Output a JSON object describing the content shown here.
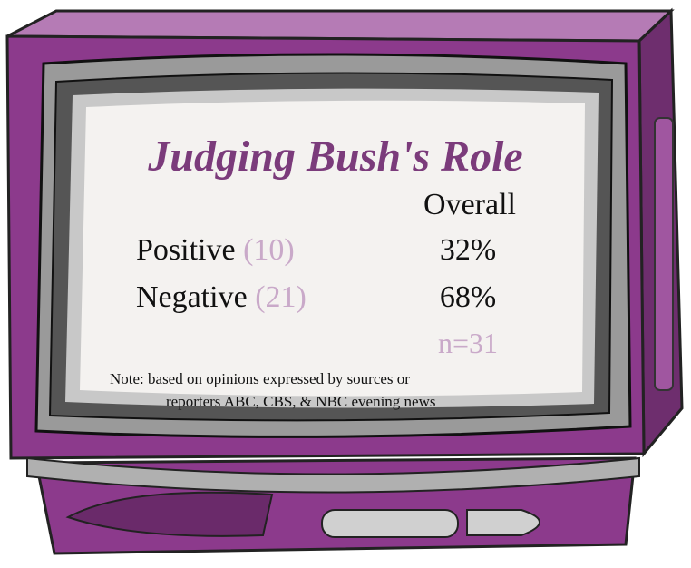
{
  "title": "Judging Bush's Role",
  "table": {
    "column_header": "Overall",
    "rows": [
      {
        "label": "Positive",
        "count": "(10)",
        "value": "32%"
      },
      {
        "label": "Negative",
        "count": "(21)",
        "value": "68%"
      }
    ],
    "sample": "n=31"
  },
  "note": [
    "Note: based on opinions expressed by sources or",
    "reporters ABC, CBS, & NBC evening news"
  ]
}
